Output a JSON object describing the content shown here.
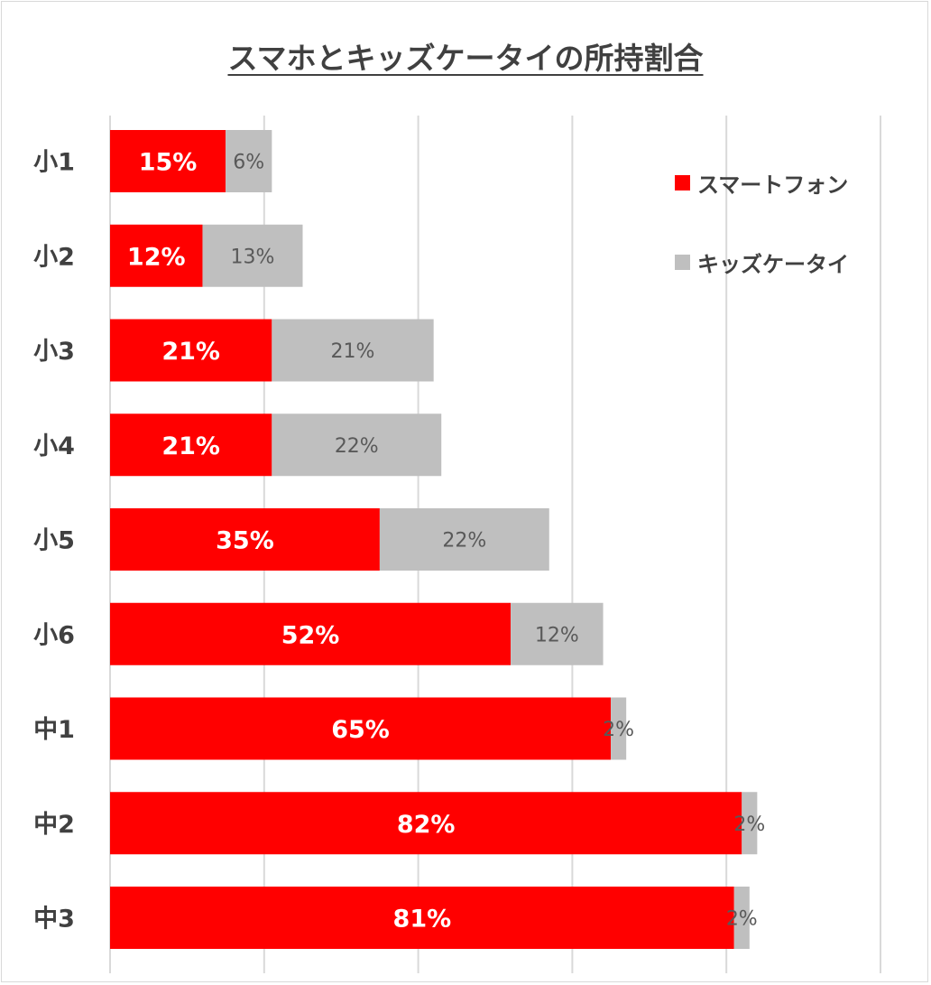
{
  "chart_data": {
    "type": "bar",
    "orientation": "horizontal",
    "stacked": true,
    "title": "スマホとキッズケータイの所持割合",
    "categories": [
      "小1",
      "小2",
      "小3",
      "小4",
      "小5",
      "小6",
      "中1",
      "中2",
      "中3"
    ],
    "series": [
      {
        "name": "スマートフォン",
        "color": "#ff0000",
        "values": [
          15,
          12,
          21,
          21,
          35,
          52,
          65,
          82,
          81
        ],
        "labels": [
          "15%",
          "12%",
          "21%",
          "21%",
          "35%",
          "52%",
          "65%",
          "82%",
          "81%"
        ]
      },
      {
        "name": "キッズケータイ",
        "color": "#bfbfbf",
        "values": [
          6,
          13,
          21,
          22,
          22,
          12,
          2,
          2,
          2
        ],
        "labels": [
          "6%",
          "13%",
          "21%",
          "22%",
          "22%",
          "12%",
          "2%",
          "2%",
          "2%"
        ]
      }
    ],
    "xlim": [
      0,
      100
    ],
    "grid": true,
    "gridline_color": "#d9d9d9",
    "legend_position": "top-right"
  }
}
